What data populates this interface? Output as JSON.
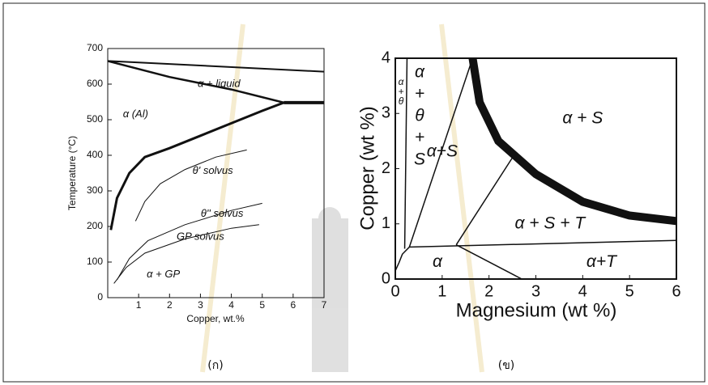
{
  "chart_data": [
    {
      "type": "line",
      "x_label": "Copper, wt.%",
      "y_label": "Temperature (°C)",
      "caption": "(ก)",
      "xlim": [
        0,
        7
      ],
      "ylim": [
        0,
        700
      ],
      "xticks": [
        1,
        2,
        3,
        4,
        5,
        6,
        7
      ],
      "yticks": [
        0,
        100,
        200,
        300,
        400,
        500,
        600,
        700
      ],
      "color": "#111111",
      "annotations": [
        "α + liquid",
        "α  (Al)",
        "θ' solvus",
        "θ'' solvus",
        "GP solvus",
        "α + GP"
      ],
      "series": [
        {
          "x": [
            0,
            7
          ],
          "values": [
            665,
            635
          ]
        },
        {
          "x": [
            0,
            2,
            4,
            5.7
          ],
          "values": [
            665,
            620,
            585,
            548
          ]
        },
        {
          "x": [
            0.1,
            0.3,
            0.7,
            1.2,
            2,
            3,
            4,
            5,
            5.7
          ],
          "values": [
            190,
            280,
            350,
            395,
            420,
            455,
            490,
            525,
            548
          ]
        },
        {
          "x": [
            5.7,
            7
          ],
          "values": [
            548,
            548
          ]
        },
        {
          "x": [
            0.9,
            1.2,
            1.7,
            2.5,
            3.5,
            4.5
          ],
          "values": [
            215,
            270,
            320,
            360,
            395,
            415
          ]
        },
        {
          "x": [
            0.3,
            0.7,
            1.3,
            2.5,
            4,
            5
          ],
          "values": [
            50,
            110,
            160,
            205,
            245,
            265
          ]
        },
        {
          "x": [
            0.2,
            0.6,
            1.2,
            2.5,
            4,
            4.9
          ],
          "values": [
            40,
            85,
            125,
            165,
            195,
            205
          ]
        }
      ]
    },
    {
      "type": "line",
      "x_label": "Magnesium (wt %)",
      "y_label": "Copper (wt %)",
      "caption": "(ข)",
      "xlim": [
        0,
        6
      ],
      "ylim": [
        0,
        4
      ],
      "xticks": [
        0,
        1,
        2,
        3,
        4,
        5,
        6
      ],
      "yticks": [
        0,
        1,
        2,
        3,
        4
      ],
      "color": "#111111",
      "small_label": [
        "α",
        "+",
        "θ"
      ],
      "stack_label": [
        "α",
        "+",
        "θ",
        "+",
        "S"
      ],
      "annotations": [
        "α+S",
        "α + S",
        "α + S + T",
        "α",
        "α+T"
      ],
      "series": [
        {
          "x": [
            0,
            0.08,
            0.15,
            0.3
          ],
          "values": [
            0.15,
            0.3,
            0.45,
            0.58
          ]
        },
        {
          "x": [
            0.2,
            0.25
          ],
          "values": [
            0.55,
            4
          ]
        },
        {
          "x": [
            0.3,
            1.65
          ],
          "values": [
            0.58,
            4
          ]
        },
        {
          "x": [
            0.3,
            6
          ],
          "values": [
            0.58,
            0.7
          ]
        },
        {
          "x": [
            1.3,
            2.5
          ],
          "values": [
            0.62,
            2.2
          ]
        },
        {
          "x": [
            1.3,
            2.7
          ],
          "values": [
            0.62,
            0
          ]
        },
        {
          "x": [
            1.65,
            1.8,
            2.2,
            3,
            4,
            5,
            6
          ],
          "values": [
            4,
            3.2,
            2.5,
            1.9,
            1.4,
            1.15,
            1.05
          ]
        }
      ]
    }
  ]
}
